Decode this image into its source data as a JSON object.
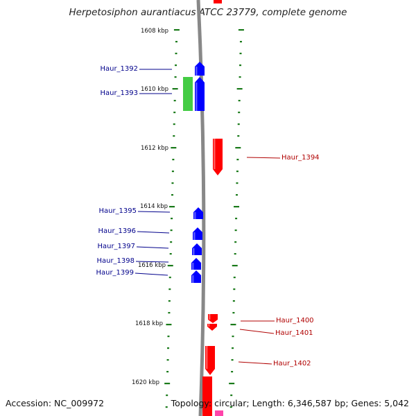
{
  "title": "Herpetosiphon aurantiacus ATCC 23779, complete genome",
  "footer": {
    "accession": "Accession: NC_009972",
    "topology": "Topology: circular; Length: 6,346,587 bp; Genes: 5,042"
  },
  "colors": {
    "forward_strand": "#0000ff",
    "reverse_strand": "#ff0000",
    "other_feature": "#44cc44",
    "tick": "#1a7a1a",
    "backbone": "#888888",
    "forward_label": "#00008b",
    "reverse_label": "#b00000"
  },
  "ruler_labels": [
    "1608 kbp",
    "1610 kbp",
    "1612 kbp",
    "1614 kbp",
    "1616 kbp",
    "1618 kbp",
    "1620 kbp"
  ],
  "genes": [
    {
      "name": "Haur_1392",
      "strand": "forward"
    },
    {
      "name": "Haur_1393",
      "strand": "forward"
    },
    {
      "name": "Haur_1394",
      "strand": "reverse"
    },
    {
      "name": "Haur_1395",
      "strand": "forward"
    },
    {
      "name": "Haur_1396",
      "strand": "forward"
    },
    {
      "name": "Haur_1397",
      "strand": "forward"
    },
    {
      "name": "Haur_1398",
      "strand": "forward"
    },
    {
      "name": "Haur_1399",
      "strand": "forward"
    },
    {
      "name": "Haur_1400",
      "strand": "reverse"
    },
    {
      "name": "Haur_1401",
      "strand": "reverse"
    },
    {
      "name": "Haur_1402",
      "strand": "reverse"
    }
  ]
}
